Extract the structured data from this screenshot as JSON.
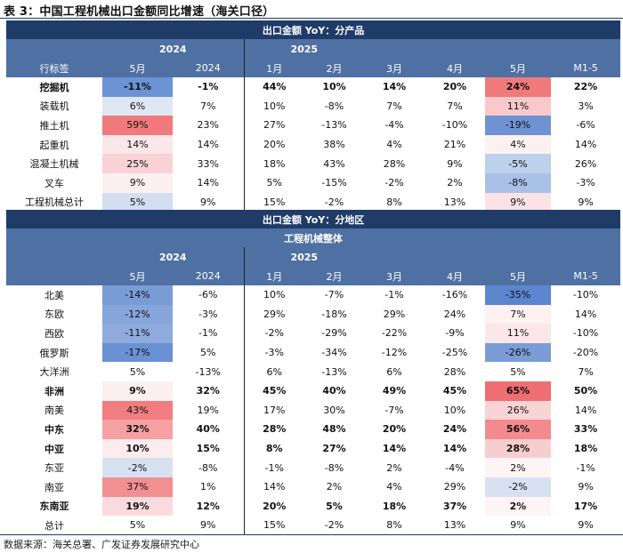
{
  "title": "表 3：中国工程机械出口金额同比增速（海关口径）",
  "source": "数据来源：海关总署、广发证券发展研究中心",
  "table1": {
    "title": "出口金额 YoY：分产品",
    "years": {
      "left": "2024",
      "right": "2025"
    },
    "columns": [
      "行标签",
      "5月",
      "2024",
      "1月",
      "2月",
      "3月",
      "4月",
      "5月",
      "M1-5"
    ],
    "rows": [
      {
        "name": "挖掘机",
        "bold": true,
        "cells": [
          "-11%",
          "-1%",
          "44%",
          "10%",
          "14%",
          "20%",
          "24%",
          "22%"
        ],
        "colors": [
          "#6b93d6",
          "",
          "",
          "",
          "",
          "",
          "#f07a7a",
          ""
        ]
      },
      {
        "name": "装载机",
        "bold": false,
        "cells": [
          "6%",
          "7%",
          "10%",
          "-8%",
          "7%",
          "7%",
          "11%",
          "3%"
        ],
        "colors": [
          "#dfe7f5",
          "",
          "",
          "",
          "",
          "",
          "#f8c8ca",
          ""
        ]
      },
      {
        "name": "推土机",
        "bold": false,
        "cells": [
          "59%",
          "23%",
          "27%",
          "-13%",
          "-4%",
          "-10%",
          "-19%",
          "-6%"
        ],
        "colors": [
          "#f27a7c",
          "",
          "",
          "",
          "",
          "",
          "#6f93d2",
          ""
        ]
      },
      {
        "name": "起重机",
        "bold": false,
        "cells": [
          "14%",
          "14%",
          "20%",
          "38%",
          "4%",
          "21%",
          "4%",
          "14%"
        ],
        "colors": [
          "#fbe6e8",
          "",
          "",
          "",
          "",
          "",
          "#fdf1f2",
          ""
        ]
      },
      {
        "name": "混凝土机械",
        "bold": false,
        "cells": [
          "25%",
          "33%",
          "18%",
          "43%",
          "28%",
          "9%",
          "-5%",
          "26%"
        ],
        "colors": [
          "#f8d2d5",
          "",
          "",
          "",
          "",
          "",
          "#bdd0ec",
          ""
        ]
      },
      {
        "name": "叉车",
        "bold": false,
        "cells": [
          "9%",
          "14%",
          "5%",
          "-15%",
          "-2%",
          "2%",
          "-8%",
          "-3%"
        ],
        "colors": [
          "#fdf0f1",
          "",
          "",
          "",
          "",
          "",
          "#a9c1e6",
          ""
        ]
      },
      {
        "name": "工程机械总计",
        "bold": false,
        "cells": [
          "5%",
          "9%",
          "15%",
          "-2%",
          "8%",
          "13%",
          "9%",
          "9%"
        ],
        "colors": [
          "#d3def0",
          "",
          "",
          "",
          "",
          "",
          "#fbe3e5",
          ""
        ]
      }
    ]
  },
  "table2": {
    "title": "出口金额 YoY：分地区",
    "subtitle": "工程机械整体",
    "years": {
      "left": "2024",
      "right": "2025"
    },
    "columns": [
      "",
      "5月",
      "2024",
      "1月",
      "2月",
      "3月",
      "4月",
      "5月",
      "M1-5"
    ],
    "rows": [
      {
        "name": "北美",
        "bold": false,
        "cells": [
          "-14%",
          "-6%",
          "10%",
          "-7%",
          "-1%",
          "-16%",
          "-35%",
          "-10%"
        ],
        "colors": [
          "#7a9cd6",
          "",
          "",
          "",
          "",
          "",
          "#5b86cf",
          ""
        ]
      },
      {
        "name": "东欧",
        "bold": false,
        "cells": [
          "-12%",
          "-3%",
          "29%",
          "-18%",
          "29%",
          "24%",
          "7%",
          "14%"
        ],
        "colors": [
          "#86a5da",
          "",
          "",
          "",
          "",
          "",
          "#fdf1f2",
          ""
        ]
      },
      {
        "name": "西欧",
        "bold": false,
        "cells": [
          "-11%",
          "-1%",
          "-2%",
          "-29%",
          "-22%",
          "-9%",
          "11%",
          "-10%"
        ],
        "colors": [
          "#8eabdc",
          "",
          "",
          "",
          "",
          "",
          "#fbe7e9",
          ""
        ]
      },
      {
        "name": "俄罗斯",
        "bold": false,
        "cells": [
          "-17%",
          "5%",
          "-3%",
          "-34%",
          "-12%",
          "-25%",
          "-26%",
          "-20%"
        ],
        "colors": [
          "#6a91d4",
          "",
          "",
          "",
          "",
          "",
          "#7b9cd6",
          ""
        ]
      },
      {
        "name": "大洋洲",
        "bold": false,
        "cells": [
          "5%",
          "-13%",
          "6%",
          "-13%",
          "6%",
          "28%",
          "5%",
          "7%"
        ],
        "colors": [
          "",
          "",
          "",
          "",
          "",
          "",
          "",
          ""
        ]
      },
      {
        "name": "非洲",
        "bold": true,
        "cells": [
          "9%",
          "32%",
          "45%",
          "40%",
          "49%",
          "45%",
          "65%",
          "50%"
        ],
        "colors": [
          "#fdf0f1",
          "",
          "",
          "",
          "",
          "",
          "#ee6e72",
          ""
        ]
      },
      {
        "name": "南美",
        "bold": false,
        "cells": [
          "43%",
          "19%",
          "17%",
          "30%",
          "-7%",
          "10%",
          "26%",
          "14%"
        ],
        "colors": [
          "#f27d80",
          "",
          "",
          "",
          "",
          "",
          "#f9d4d7",
          ""
        ]
      },
      {
        "name": "中东",
        "bold": true,
        "cells": [
          "32%",
          "40%",
          "28%",
          "48%",
          "20%",
          "24%",
          "56%",
          "33%"
        ],
        "colors": [
          "#f6a0a4",
          "",
          "",
          "",
          "",
          "",
          "#f28a8e",
          ""
        ]
      },
      {
        "name": "中亚",
        "bold": true,
        "cells": [
          "10%",
          "15%",
          "8%",
          "27%",
          "14%",
          "14%",
          "28%",
          "18%"
        ],
        "colors": [
          "#fcecee",
          "",
          "",
          "",
          "",
          "",
          "#f8cdd0",
          ""
        ]
      },
      {
        "name": "东亚",
        "bold": false,
        "cells": [
          "-2%",
          "-8%",
          "-1%",
          "-8%",
          "2%",
          "-4%",
          "2%",
          "-1%"
        ],
        "colors": [
          "#d7e1f2",
          "",
          "",
          "",
          "",
          "",
          "#fdf4f5",
          ""
        ]
      },
      {
        "name": "南亚",
        "bold": false,
        "cells": [
          "37%",
          "1%",
          "14%",
          "2%",
          "4%",
          "29%",
          "-2%",
          "9%"
        ],
        "colors": [
          "#f28f92",
          "",
          "",
          "",
          "",
          "",
          "#d7e1f2",
          ""
        ]
      },
      {
        "name": "东南亚",
        "bold": true,
        "cells": [
          "19%",
          "12%",
          "20%",
          "5%",
          "18%",
          "37%",
          "2%",
          "17%"
        ],
        "colors": [
          "#f9dadd",
          "",
          "",
          "",
          "",
          "",
          "#fdf4f5",
          ""
        ]
      },
      {
        "name": "总计",
        "bold": false,
        "cells": [
          "5%",
          "9%",
          "15%",
          "-2%",
          "8%",
          "13%",
          "9%",
          "9%"
        ],
        "colors": [
          "",
          "",
          "",
          "",
          "",
          "",
          "",
          ""
        ]
      }
    ]
  }
}
